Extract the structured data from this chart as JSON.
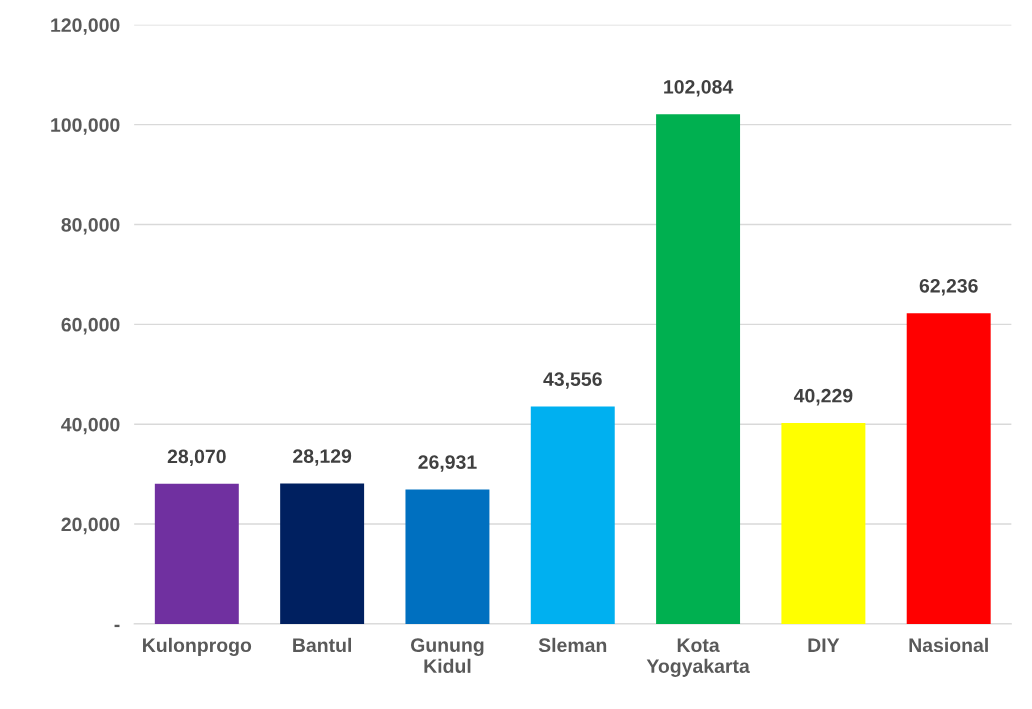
{
  "chart_data": {
    "type": "bar",
    "categories": [
      "Kulonprogo",
      "Bantul",
      "Gunung\nKidul",
      "Sleman",
      "Kota\nYogyakarta",
      "DIY",
      "Nasional"
    ],
    "values": [
      28070,
      28129,
      26931,
      43556,
      102084,
      40229,
      62236
    ],
    "colors": [
      "#7030a0",
      "#002060",
      "#0070c0",
      "#00b0f0",
      "#00b050",
      "#ffff00",
      "#ff0000"
    ],
    "value_labels": [
      "28,070",
      "28,129",
      "26,931",
      "43,556",
      "102,084",
      "40,229",
      "62,236"
    ],
    "ylim": [
      0,
      120000
    ],
    "yticks": [
      {
        "value": 0,
        "label": "-"
      },
      {
        "value": 20000,
        "label": "20,000"
      },
      {
        "value": 40000,
        "label": "40,000"
      },
      {
        "value": 60000,
        "label": "60,000"
      },
      {
        "value": 80000,
        "label": "80,000"
      },
      {
        "value": 100000,
        "label": "100,000"
      },
      {
        "value": 120000,
        "label": "120,000"
      }
    ],
    "grid": "y"
  }
}
